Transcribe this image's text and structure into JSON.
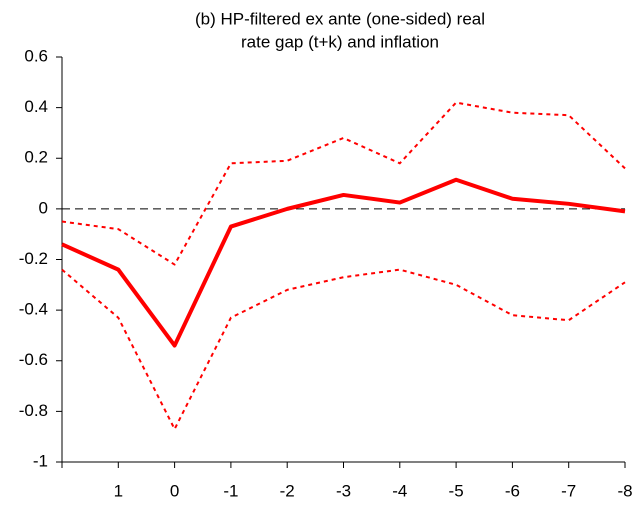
{
  "chart_data": {
    "type": "line",
    "title": [
      "(b) HP-filtered ex ante (one-sided) real",
      "rate gap (t+k) and inflation"
    ],
    "categories": [
      null,
      "1",
      "0",
      "-1",
      "-2",
      "-3",
      "-4",
      "-5",
      "-6",
      "-7",
      "-8"
    ],
    "series": [
      {
        "color": "#ff0000",
        "width": 4,
        "dash": "none",
        "values": [
          -0.14,
          -0.24,
          -0.54,
          -0.07,
          0,
          0.055,
          0.025,
          0.115,
          0.04,
          0.02,
          -0.01
        ]
      },
      {
        "color": "#ff0000",
        "width": 2,
        "dash": "4 4",
        "values": [
          -0.05,
          -0.08,
          -0.22,
          0.18,
          0.19,
          0.28,
          0.18,
          0.42,
          0.38,
          0.37,
          0.16
        ]
      },
      {
        "color": "#ff0000",
        "width": 2,
        "dash": "4 4",
        "values": [
          -0.24,
          -0.43,
          -0.87,
          -0.43,
          -0.32,
          -0.27,
          -0.24,
          -0.3,
          -0.42,
          -0.44,
          -0.29
        ]
      }
    ],
    "reference_line": 0,
    "ylim": [
      -1,
      0.6
    ],
    "yticks": [
      -1,
      -0.8,
      -0.6,
      -0.4,
      -0.2,
      0,
      0.2,
      0.4,
      0.6
    ]
  }
}
